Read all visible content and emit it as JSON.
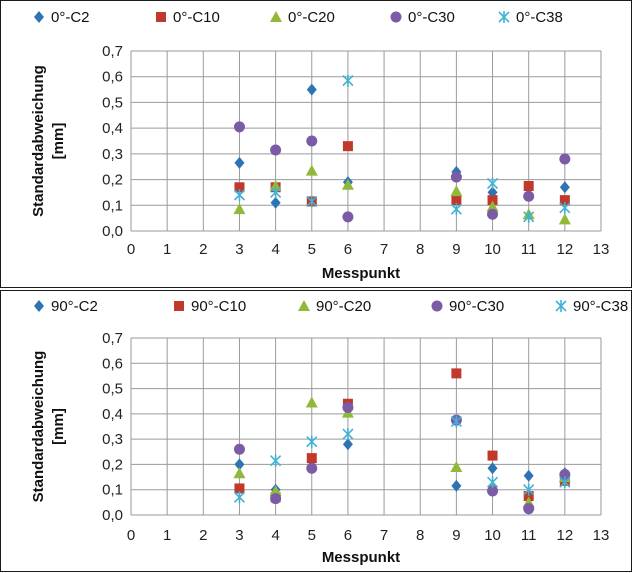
{
  "chart_data": [
    {
      "type": "scatter",
      "title": "",
      "xlabel": "Messpunkt",
      "ylabel": [
        "Standardabweichung",
        "[mm]"
      ],
      "xlim": [
        0,
        13
      ],
      "ylim": [
        0,
        0.7
      ],
      "xticks": [
        "0",
        "1",
        "2",
        "3",
        "4",
        "5",
        "6",
        "7",
        "8",
        "9",
        "10",
        "11",
        "12",
        "13"
      ],
      "yticks": [
        "0,0",
        "0,1",
        "0,2",
        "0,3",
        "0,4",
        "0,5",
        "0,6",
        "0,7"
      ],
      "grid": true,
      "legend_position": "top",
      "series": [
        {
          "name": "0°-C2",
          "marker": "diamond",
          "color": "#2e74b5",
          "points": [
            [
              3,
              0.265
            ],
            [
              4,
              0.11
            ],
            [
              5,
              0.55
            ],
            [
              6,
              0.19
            ],
            [
              9,
              0.23
            ],
            [
              10,
              0.15
            ],
            [
              11,
              0.14
            ],
            [
              12,
              0.17
            ]
          ]
        },
        {
          "name": "0°-C10",
          "marker": "square",
          "color": "#c0392b",
          "points": [
            [
              3,
              0.17
            ],
            [
              4,
              0.17
            ],
            [
              5,
              0.115
            ],
            [
              6,
              0.33
            ],
            [
              9,
              0.12
            ],
            [
              10,
              0.12
            ],
            [
              11,
              0.175
            ],
            [
              12,
              0.12
            ]
          ]
        },
        {
          "name": "0°-C20",
          "marker": "triangle",
          "color": "#92b83a",
          "points": [
            [
              3,
              0.085
            ],
            [
              4,
              0.175
            ],
            [
              5,
              0.235
            ],
            [
              6,
              0.18
            ],
            [
              9,
              0.155
            ],
            [
              10,
              0.095
            ],
            [
              11,
              0.065
            ],
            [
              12,
              0.045
            ]
          ]
        },
        {
          "name": "0°-C30",
          "marker": "circle",
          "color": "#7b5aa6",
          "points": [
            [
              3,
              0.405
            ],
            [
              4,
              0.315
            ],
            [
              5,
              0.35
            ],
            [
              6,
              0.055
            ],
            [
              9,
              0.21
            ],
            [
              10,
              0.065
            ],
            [
              11,
              0.135
            ],
            [
              12,
              0.28
            ]
          ]
        },
        {
          "name": "0°-C38",
          "marker": "star",
          "color": "#3fb2d6",
          "points": [
            [
              3,
              0.14
            ],
            [
              4,
              0.15
            ],
            [
              5,
              0.115
            ],
            [
              6,
              0.585
            ],
            [
              9,
              0.085
            ],
            [
              10,
              0.185
            ],
            [
              11,
              0.055
            ],
            [
              12,
              0.09
            ]
          ]
        }
      ]
    },
    {
      "type": "scatter",
      "title": "",
      "xlabel": "Messpunkt",
      "ylabel": [
        "Standardabweichung",
        "[mm]"
      ],
      "xlim": [
        0,
        13
      ],
      "ylim": [
        0,
        0.7
      ],
      "xticks": [
        "0",
        "1",
        "2",
        "3",
        "4",
        "5",
        "6",
        "7",
        "8",
        "9",
        "10",
        "11",
        "12",
        "13"
      ],
      "yticks": [
        "0,0",
        "0,1",
        "0,2",
        "0,3",
        "0,4",
        "0,5",
        "0,6",
        "0,7"
      ],
      "grid": true,
      "legend_position": "top",
      "series": [
        {
          "name": "90°-C2",
          "marker": "diamond",
          "color": "#2e74b5",
          "points": [
            [
              3,
              0.2
            ],
            [
              4,
              0.1
            ],
            [
              5,
              0.215
            ],
            [
              6,
              0.28
            ],
            [
              9,
              0.115
            ],
            [
              10,
              0.185
            ],
            [
              11,
              0.155
            ],
            [
              12,
              0.165
            ]
          ]
        },
        {
          "name": "90°-C10",
          "marker": "square",
          "color": "#c0392b",
          "points": [
            [
              3,
              0.105
            ],
            [
              4,
              0.07
            ],
            [
              5,
              0.225
            ],
            [
              6,
              0.44
            ],
            [
              9,
              0.56
            ],
            [
              10,
              0.235
            ],
            [
              11,
              0.075
            ],
            [
              12,
              0.135
            ]
          ]
        },
        {
          "name": "90°-C20",
          "marker": "triangle",
          "color": "#92b83a",
          "points": [
            [
              3,
              0.165
            ],
            [
              4,
              0.095
            ],
            [
              5,
              0.445
            ],
            [
              6,
              0.405
            ],
            [
              9,
              0.19
            ],
            [
              10,
              0.115
            ],
            [
              11,
              0.05
            ],
            [
              12,
              0.15
            ]
          ]
        },
        {
          "name": "90°-C30",
          "marker": "circle",
          "color": "#7b5aa6",
          "points": [
            [
              3,
              0.26
            ],
            [
              4,
              0.065
            ],
            [
              5,
              0.185
            ],
            [
              6,
              0.425
            ],
            [
              9,
              0.375
            ],
            [
              10,
              0.095
            ],
            [
              11,
              0.025
            ],
            [
              12,
              0.16
            ]
          ]
        },
        {
          "name": "90°-C38",
          "marker": "star",
          "color": "#3fb2d6",
          "points": [
            [
              3,
              0.07
            ],
            [
              4,
              0.215
            ],
            [
              5,
              0.29
            ],
            [
              6,
              0.32
            ],
            [
              9,
              0.37
            ],
            [
              10,
              0.13
            ],
            [
              11,
              0.1
            ],
            [
              12,
              0.13
            ]
          ]
        }
      ]
    }
  ]
}
